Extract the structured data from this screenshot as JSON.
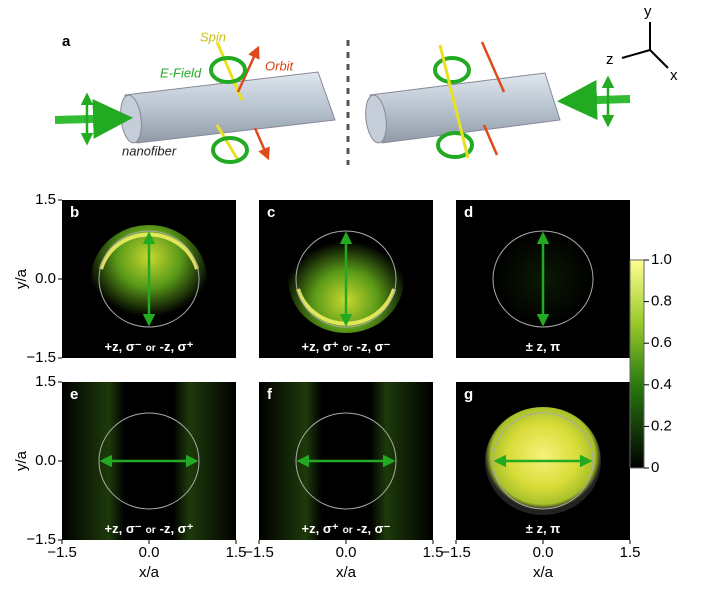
{
  "panel_a": {
    "label": "a",
    "spin": "Spin",
    "e_field": "E-Field",
    "orbit": "Orbit",
    "fiber": "nanofiber",
    "axes": {
      "y": "y",
      "z": "z",
      "x": "x"
    }
  },
  "axes": {
    "ylabel": "y/a",
    "xlabel": "x/a",
    "ticks": [
      {
        "value": -1.5,
        "label": "−1.5"
      },
      {
        "value": 0,
        "label": "0.0"
      },
      1.5
    ]
  },
  "panels": [
    {
      "label": "b",
      "caption": [
        "+z, σ⁻",
        "or",
        "-z, σ⁺"
      ]
    },
    {
      "label": "c",
      "caption": [
        "+z, σ⁺",
        "or",
        "-z, σ⁻"
      ]
    },
    {
      "label": "d",
      "caption": [
        "± z, π"
      ]
    },
    {
      "label": "e",
      "caption": [
        "+z, σ⁻",
        "or",
        "-z, σ⁺"
      ]
    },
    {
      "label": "f",
      "caption": [
        "+z, σ⁺",
        "or",
        "-z, σ⁻"
      ]
    },
    {
      "label": "g",
      "caption": [
        "± z, π"
      ]
    }
  ],
  "colorbar": {
    "ticks": [
      {
        "value": 1,
        "label": "1.0"
      },
      0.8,
      0.6,
      0.4,
      0.2,
      0
    ]
  }
}
